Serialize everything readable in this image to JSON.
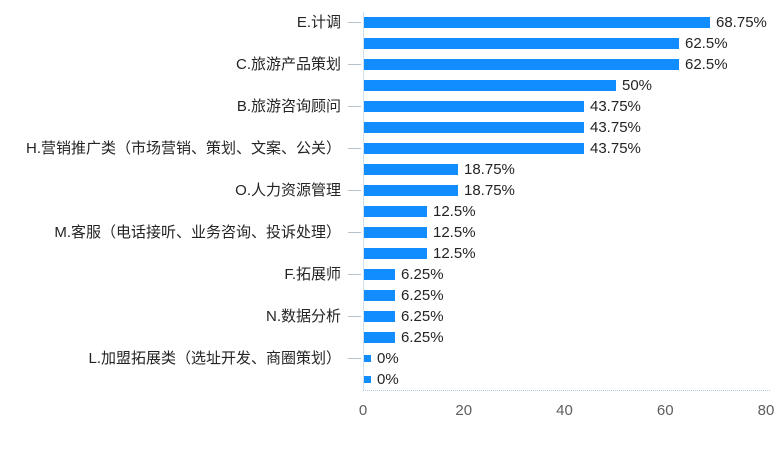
{
  "chart_data": {
    "type": "bar",
    "orientation": "horizontal",
    "title": "",
    "categories": [
      "E.计调",
      "",
      "C.旅游产品策划",
      "",
      "B.旅游咨询顾问",
      "",
      "H.营销推广类（市场营销、策划、文案、公关）",
      "",
      "O.人力资源管理",
      "",
      "M.客服（电话接听、业务咨询、投诉处理）",
      "",
      "F.拓展师",
      "",
      "N.数据分析",
      "",
      "L.加盟拓展类（选址开发、商圈策划）",
      ""
    ],
    "values": [
      68.75,
      62.5,
      62.5,
      50,
      43.75,
      43.75,
      43.75,
      18.75,
      18.75,
      12.5,
      12.5,
      12.5,
      6.25,
      6.25,
      6.25,
      6.25,
      0,
      0
    ],
    "value_labels": [
      "68.75%",
      "62.5%",
      "62.5%",
      "50%",
      "43.75%",
      "43.75%",
      "43.75%",
      "18.75%",
      "18.75%",
      "12.5%",
      "12.5%",
      "12.5%",
      "6.25%",
      "6.25%",
      "6.25%",
      "6.25%",
      "0%",
      "0%"
    ],
    "x_ticks": [
      "0",
      "20",
      "40",
      "60",
      "80"
    ],
    "xlim": [
      0,
      80
    ],
    "grid": false,
    "legend": false,
    "colors": {
      "bar": "#118DFF",
      "data_label": "#252423",
      "category_label": "#252423",
      "axis_tick_label": "#605E5C",
      "axis_line": "#cfe0ef",
      "baseline_dotted": "#aecbe3",
      "category_tick": "#b8c2cb"
    }
  }
}
